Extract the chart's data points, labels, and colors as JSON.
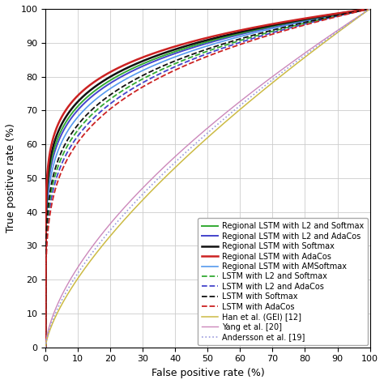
{
  "title": "",
  "xlabel": "False positive rate (%)",
  "ylabel": "True positive rate (%)",
  "xlim": [
    0,
    100
  ],
  "ylim": [
    0,
    100
  ],
  "xticks": [
    0,
    10,
    20,
    30,
    40,
    50,
    60,
    70,
    80,
    90,
    100
  ],
  "yticks": [
    0,
    10,
    20,
    30,
    40,
    50,
    60,
    70,
    80,
    90,
    100
  ],
  "curves": [
    {
      "label": "Regional LSTM with L2 and Softmax",
      "color": "#33aa33",
      "linestyle": "solid",
      "linewidth": 1.4,
      "auc_a": 5.8,
      "draw_order": 5
    },
    {
      "label": "Regional LSTM with L2 and AdaCos",
      "color": "#4444cc",
      "linestyle": "solid",
      "linewidth": 1.4,
      "auc_a": 5.5,
      "draw_order": 4
    },
    {
      "label": "Regional LSTM with Softmax",
      "color": "#111111",
      "linestyle": "solid",
      "linewidth": 1.8,
      "auc_a": 6.2,
      "draw_order": 6
    },
    {
      "label": "Regional LSTM with AdaCos",
      "color": "#cc2222",
      "linestyle": "solid",
      "linewidth": 1.8,
      "auc_a": 6.8,
      "draw_order": 7
    },
    {
      "label": "Regional LSTM with AMSoftmax",
      "color": "#5599ee",
      "linestyle": "solid",
      "linewidth": 1.2,
      "auc_a": 5.0,
      "draw_order": 3
    },
    {
      "label": "LSTM with L2 and Softmax",
      "color": "#33aa33",
      "linestyle": "dashed",
      "linewidth": 1.3,
      "auc_a": 4.2,
      "draw_order": 2
    },
    {
      "label": "LSTM with L2 and AdaCos",
      "color": "#4444cc",
      "linestyle": "dashed",
      "linewidth": 1.3,
      "auc_a": 3.9,
      "draw_order": 1
    },
    {
      "label": "LSTM with Softmax",
      "color": "#111111",
      "linestyle": "dashed",
      "linewidth": 1.3,
      "auc_a": 4.5,
      "draw_order": 8
    },
    {
      "label": "LSTM with AdaCos",
      "color": "#cc2222",
      "linestyle": "dashed",
      "linewidth": 1.3,
      "auc_a": 3.6,
      "draw_order": 9
    },
    {
      "label": "Han et al. (GEI) [12]",
      "color": "#ccbb44",
      "linestyle": "solid",
      "linewidth": 1.1,
      "auc_a": 0.45,
      "draw_order": 11
    },
    {
      "label": "Yang et al. [20]",
      "color": "#cc88bb",
      "linestyle": "solid",
      "linewidth": 1.0,
      "auc_a": 0.6,
      "draw_order": 10
    },
    {
      "label": "Andersson et al. [19]",
      "color": "#9999dd",
      "linestyle": "dotted",
      "linewidth": 1.2,
      "auc_a": 0.52,
      "draw_order": 12
    }
  ],
  "legend_fontsize": 7.0,
  "axis_fontsize": 9,
  "tick_fontsize": 8,
  "background_color": "#ffffff",
  "grid_color": "#cccccc"
}
